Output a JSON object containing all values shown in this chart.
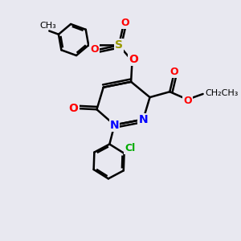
{
  "bg_color": "#e8e8f0",
  "bond_color": "#000000",
  "bond_width": 1.8,
  "atom_colors": {
    "O": "#ff0000",
    "N": "#0000ff",
    "S": "#999900",
    "Cl": "#00aa00",
    "C": "#000000"
  },
  "font_size": 9,
  "figsize": [
    3.0,
    3.0
  ],
  "dpi": 100
}
